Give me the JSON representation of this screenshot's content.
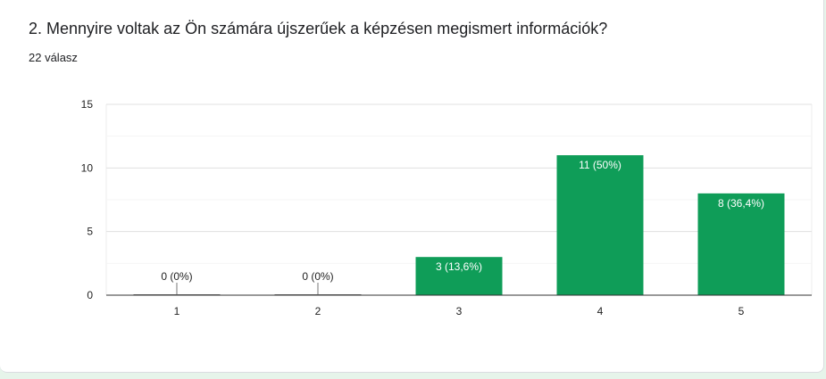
{
  "question": {
    "title": "2. Mennyire voltak az Ön számára újszerűek a képzésen megismert információk?",
    "response_count": "22 válasz"
  },
  "colors": {
    "bar": "#0f9d58",
    "grid": "#eeeeee",
    "axis": "#333333",
    "background": "#e6f4ea"
  },
  "chart_data": {
    "type": "bar",
    "categories": [
      "1",
      "2",
      "3",
      "4",
      "5"
    ],
    "values": [
      0,
      0,
      3,
      11,
      8
    ],
    "data_labels": [
      "0 (0%)",
      "0 (0%)",
      "3 (13,6%)",
      "11 (50%)",
      "8 (36,4%)"
    ],
    "yticks": [
      0,
      5,
      10,
      15
    ],
    "ylim": [
      0,
      15
    ],
    "grid": true,
    "title": "",
    "xlabel": "",
    "ylabel": ""
  }
}
